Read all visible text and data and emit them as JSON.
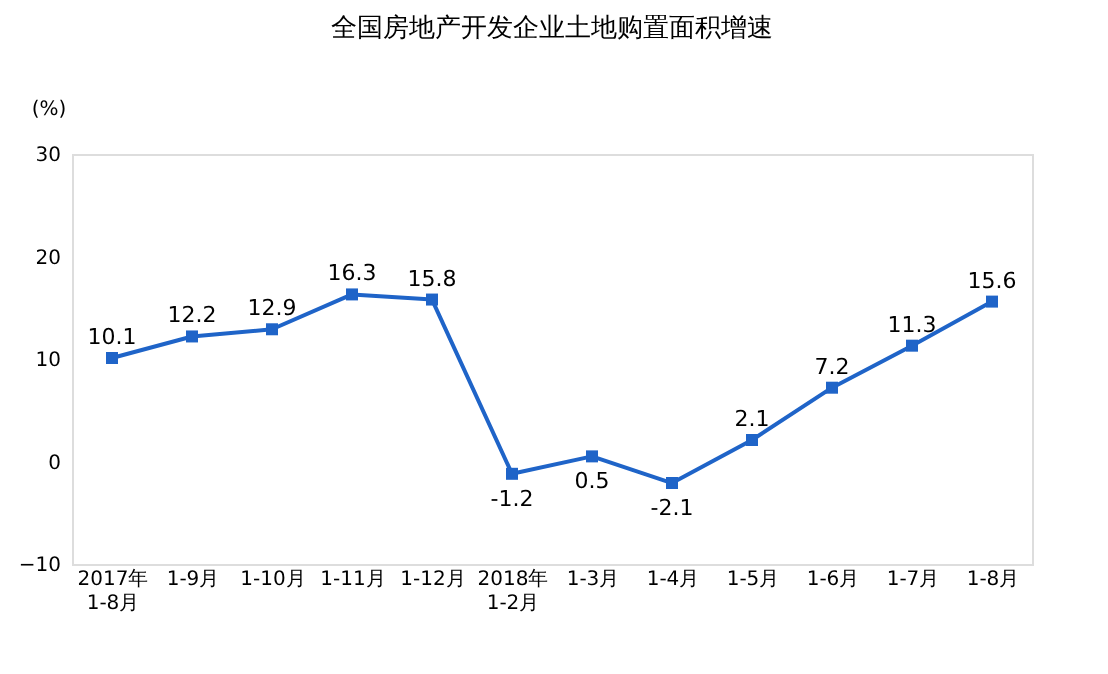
{
  "chart_data": {
    "type": "line",
    "title": "全国房地产开发企业土地购置面积增速",
    "ylabel": "(%)",
    "categories": [
      "2017年\n1-8月",
      "1-9月",
      "1-10月",
      "1-11月",
      "1-12月",
      "2018年\n1-2月",
      "1-3月",
      "1-4月",
      "1-5月",
      "1-6月",
      "1-7月",
      "1-8月"
    ],
    "series": [
      {
        "color": "#1f64c8",
        "values": [
          10.1,
          12.2,
          12.9,
          16.3,
          15.8,
          -1.2,
          0.5,
          -2.1,
          2.1,
          7.2,
          11.3,
          15.6
        ]
      }
    ],
    "ylim": [
      -10,
      30
    ],
    "yticks": [
      -10,
      0,
      10,
      20,
      30
    ],
    "marker": "square",
    "line_style": "solid",
    "data_labels": true,
    "grid": false
  }
}
